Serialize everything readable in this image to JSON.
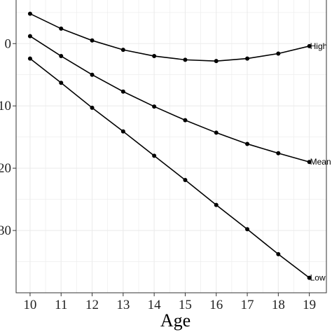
{
  "chart_data": {
    "type": "line",
    "title": "",
    "xlabel": "Age",
    "ylabel": "",
    "x": [
      10,
      11,
      12,
      13,
      14,
      15,
      16,
      17,
      18,
      19
    ],
    "xticks": [
      "10",
      "11",
      "12",
      "13",
      "14",
      "15",
      "16",
      "17",
      "18",
      "19"
    ],
    "yticks": [
      "0",
      "10",
      "20",
      "30"
    ],
    "xlim": [
      9.55,
      19.55
    ],
    "ylim": [
      -7,
      40
    ],
    "y_reversed": true,
    "grid": true,
    "legend": "none",
    "series": [
      {
        "name": "High",
        "values": [
          -4.8,
          -2.4,
          -0.5,
          1.0,
          2.0,
          2.6,
          2.8,
          2.4,
          1.6,
          0.4
        ]
      },
      {
        "name": "Mean",
        "values": [
          -1.2,
          2.0,
          5.0,
          7.7,
          10.1,
          12.3,
          14.3,
          16.1,
          17.6,
          19.0
        ]
      },
      {
        "name": "Low",
        "values": [
          2.4,
          6.3,
          10.3,
          14.1,
          18.0,
          21.9,
          25.9,
          29.8,
          33.8,
          37.6
        ]
      }
    ],
    "colors": {
      "line": "#000000",
      "grid": "#ebebeb",
      "panel_border": "#333333"
    }
  }
}
